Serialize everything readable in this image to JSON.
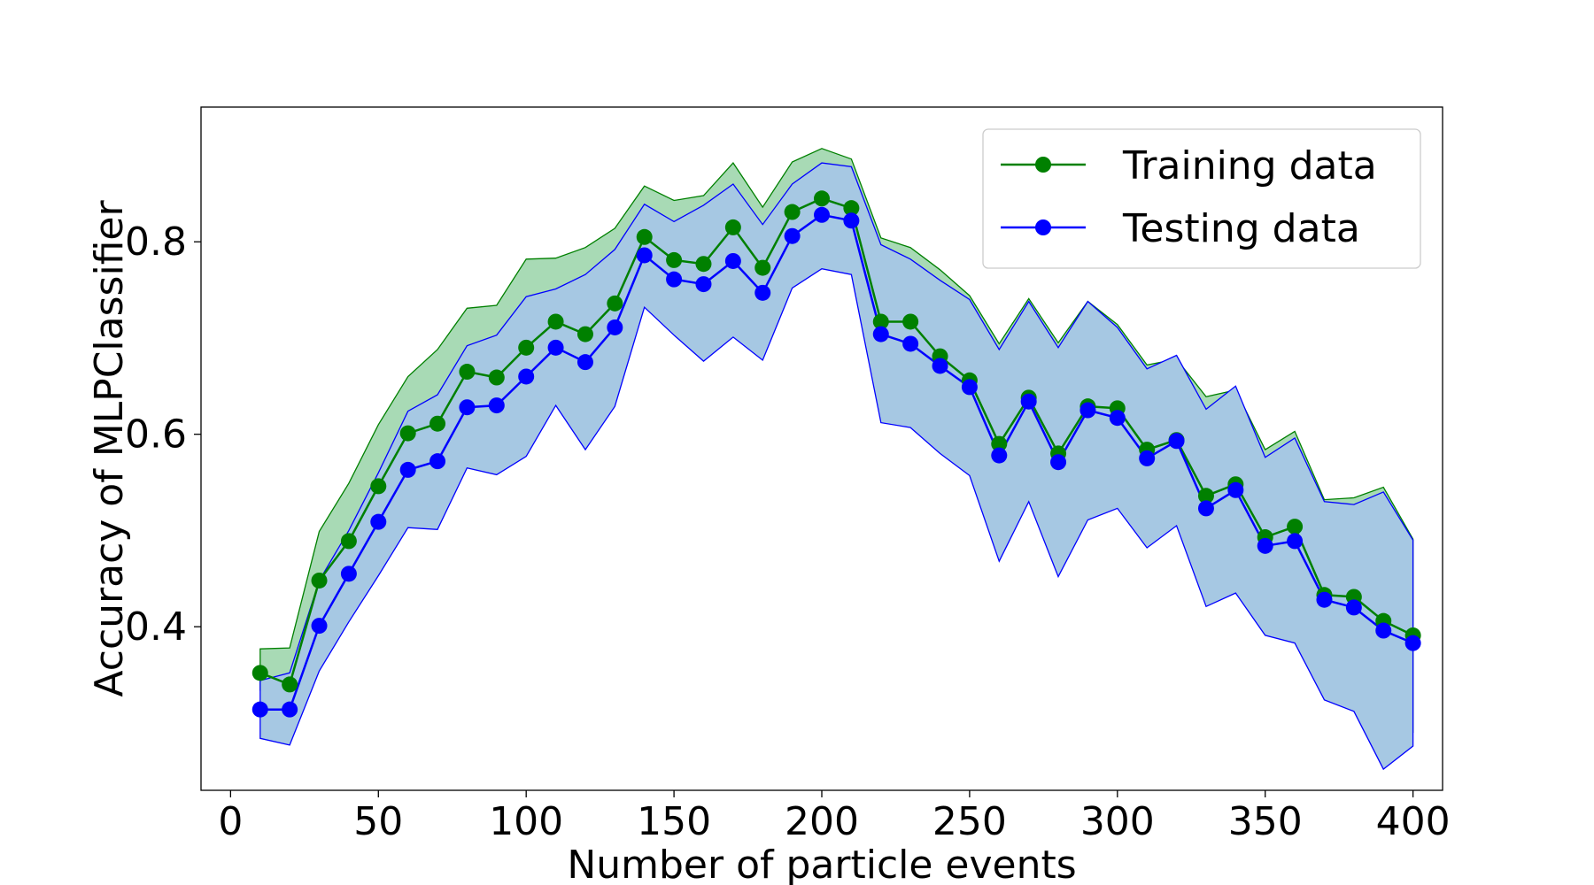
{
  "chart_data": {
    "type": "line",
    "title": "",
    "xlabel": "Number of particle events",
    "ylabel": "Accuracy of MLPClassifier",
    "xlim": [
      -10,
      410
    ],
    "ylim": [
      0.23,
      0.94
    ],
    "xticks": [
      0,
      50,
      100,
      150,
      200,
      250,
      300,
      350,
      400
    ],
    "xtick_labels": [
      "0",
      "50",
      "100",
      "150",
      "200",
      "250",
      "300",
      "350",
      "400"
    ],
    "yticks": [
      0.4,
      0.6,
      0.8
    ],
    "ytick_labels": [
      "0.4",
      "0.6",
      "0.8"
    ],
    "grid": false,
    "legend_position": "top-right",
    "x": [
      10,
      20,
      30,
      40,
      50,
      60,
      70,
      80,
      90,
      100,
      110,
      120,
      130,
      140,
      150,
      160,
      170,
      180,
      190,
      200,
      210,
      220,
      230,
      240,
      250,
      260,
      270,
      280,
      290,
      300,
      310,
      320,
      330,
      340,
      350,
      360,
      370,
      380,
      390,
      400
    ],
    "series": [
      {
        "name": "Training data",
        "color": "#008000",
        "band_color": "#a8dab5",
        "values": [
          0.352,
          0.34,
          0.448,
          0.489,
          0.546,
          0.601,
          0.611,
          0.665,
          0.659,
          0.69,
          0.717,
          0.704,
          0.736,
          0.805,
          0.781,
          0.777,
          0.815,
          0.773,
          0.831,
          0.845,
          0.835,
          0.717,
          0.717,
          0.681,
          0.656,
          0.59,
          0.638,
          0.58,
          0.629,
          0.627,
          0.584,
          0.594,
          0.536,
          0.548,
          0.493,
          0.504,
          0.433,
          0.431,
          0.406,
          0.391
        ],
        "upper": [
          0.377,
          0.378,
          0.499,
          0.549,
          0.61,
          0.66,
          0.688,
          0.731,
          0.734,
          0.782,
          0.783,
          0.794,
          0.814,
          0.858,
          0.843,
          0.848,
          0.882,
          0.836,
          0.883,
          0.897,
          0.886,
          0.804,
          0.794,
          0.771,
          0.744,
          0.694,
          0.741,
          0.695,
          0.738,
          0.714,
          0.672,
          0.678,
          0.639,
          0.646,
          0.584,
          0.603,
          0.532,
          0.534,
          0.545,
          0.491
        ],
        "lower": [
          0.334,
          0.334,
          0.403,
          0.444,
          0.496,
          0.552,
          0.546,
          0.6,
          0.586,
          0.602,
          0.649,
          0.616,
          0.66,
          0.762,
          0.718,
          0.703,
          0.735,
          0.706,
          0.777,
          0.785,
          0.778,
          0.64,
          0.642,
          0.604,
          0.573,
          0.485,
          0.54,
          0.47,
          0.52,
          0.534,
          0.495,
          0.51,
          0.44,
          0.451,
          0.402,
          0.404,
          0.335,
          0.329,
          0.27,
          0.29
        ]
      },
      {
        "name": "Testing data",
        "color": "#0000ff",
        "band_color": "#a6c8e3",
        "values": [
          0.314,
          0.314,
          0.401,
          0.455,
          0.509,
          0.563,
          0.572,
          0.628,
          0.63,
          0.66,
          0.69,
          0.675,
          0.711,
          0.786,
          0.761,
          0.756,
          0.78,
          0.747,
          0.806,
          0.828,
          0.822,
          0.704,
          0.694,
          0.671,
          0.649,
          0.578,
          0.634,
          0.571,
          0.625,
          0.617,
          0.575,
          0.593,
          0.523,
          0.542,
          0.484,
          0.489,
          0.428,
          0.42,
          0.396,
          0.383
        ],
        "upper": [
          0.344,
          0.352,
          0.448,
          0.5,
          0.56,
          0.624,
          0.641,
          0.692,
          0.703,
          0.743,
          0.751,
          0.766,
          0.792,
          0.839,
          0.821,
          0.838,
          0.86,
          0.818,
          0.86,
          0.882,
          0.878,
          0.797,
          0.782,
          0.76,
          0.74,
          0.688,
          0.738,
          0.69,
          0.738,
          0.711,
          0.668,
          0.682,
          0.626,
          0.65,
          0.576,
          0.596,
          0.53,
          0.527,
          0.54,
          0.49
        ],
        "lower": [
          0.284,
          0.277,
          0.354,
          0.405,
          0.453,
          0.503,
          0.501,
          0.565,
          0.558,
          0.577,
          0.63,
          0.584,
          0.629,
          0.732,
          0.703,
          0.676,
          0.701,
          0.677,
          0.752,
          0.772,
          0.766,
          0.612,
          0.607,
          0.58,
          0.557,
          0.468,
          0.53,
          0.452,
          0.511,
          0.523,
          0.482,
          0.505,
          0.421,
          0.435,
          0.391,
          0.383,
          0.324,
          0.312,
          0.252,
          0.276
        ]
      }
    ]
  }
}
